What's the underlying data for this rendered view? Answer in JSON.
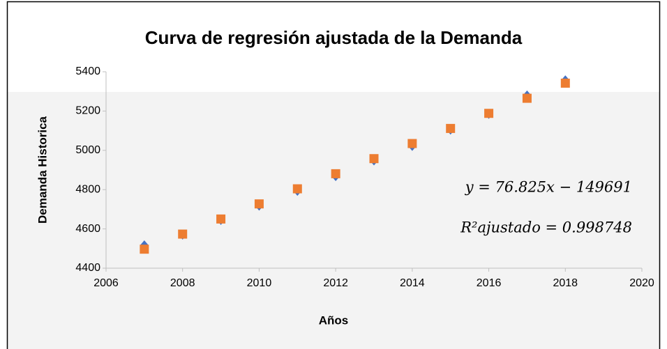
{
  "chart_data": {
    "type": "scatter",
    "title": "Curva de regresión ajustada de la Demanda",
    "xlabel": "Años",
    "ylabel": "Demanda Historica",
    "x": [
      2007,
      2008,
      2009,
      2010,
      2011,
      2012,
      2013,
      2014,
      2015,
      2016,
      2017,
      2018
    ],
    "series": [
      {
        "color": "#4472c4",
        "marker": "diamond",
        "values": [
          4517,
          4570,
          4645,
          4718,
          4793,
          4868,
          4948,
          5022,
          5105,
          5185,
          5280,
          5357
        ]
      },
      {
        "color": "#ed7d31",
        "marker": "square",
        "values": [
          4496.8,
          4573.6,
          4650.4,
          4727.3,
          4804.1,
          4880.9,
          4957.7,
          5034.6,
          5111.4,
          5188.2,
          5265.0,
          5341.9
        ]
      }
    ],
    "xlim": [
      2006,
      2020
    ],
    "xticks": [
      2006,
      2008,
      2010,
      2012,
      2014,
      2016,
      2018,
      2020
    ],
    "ylim": [
      4400,
      5400
    ],
    "yticks": [
      4400,
      4600,
      4800,
      5000,
      5200,
      5400
    ],
    "grid": false,
    "annotations": [
      "y = 76.825x − 149691",
      "R²ajustado = 0.998748"
    ]
  }
}
